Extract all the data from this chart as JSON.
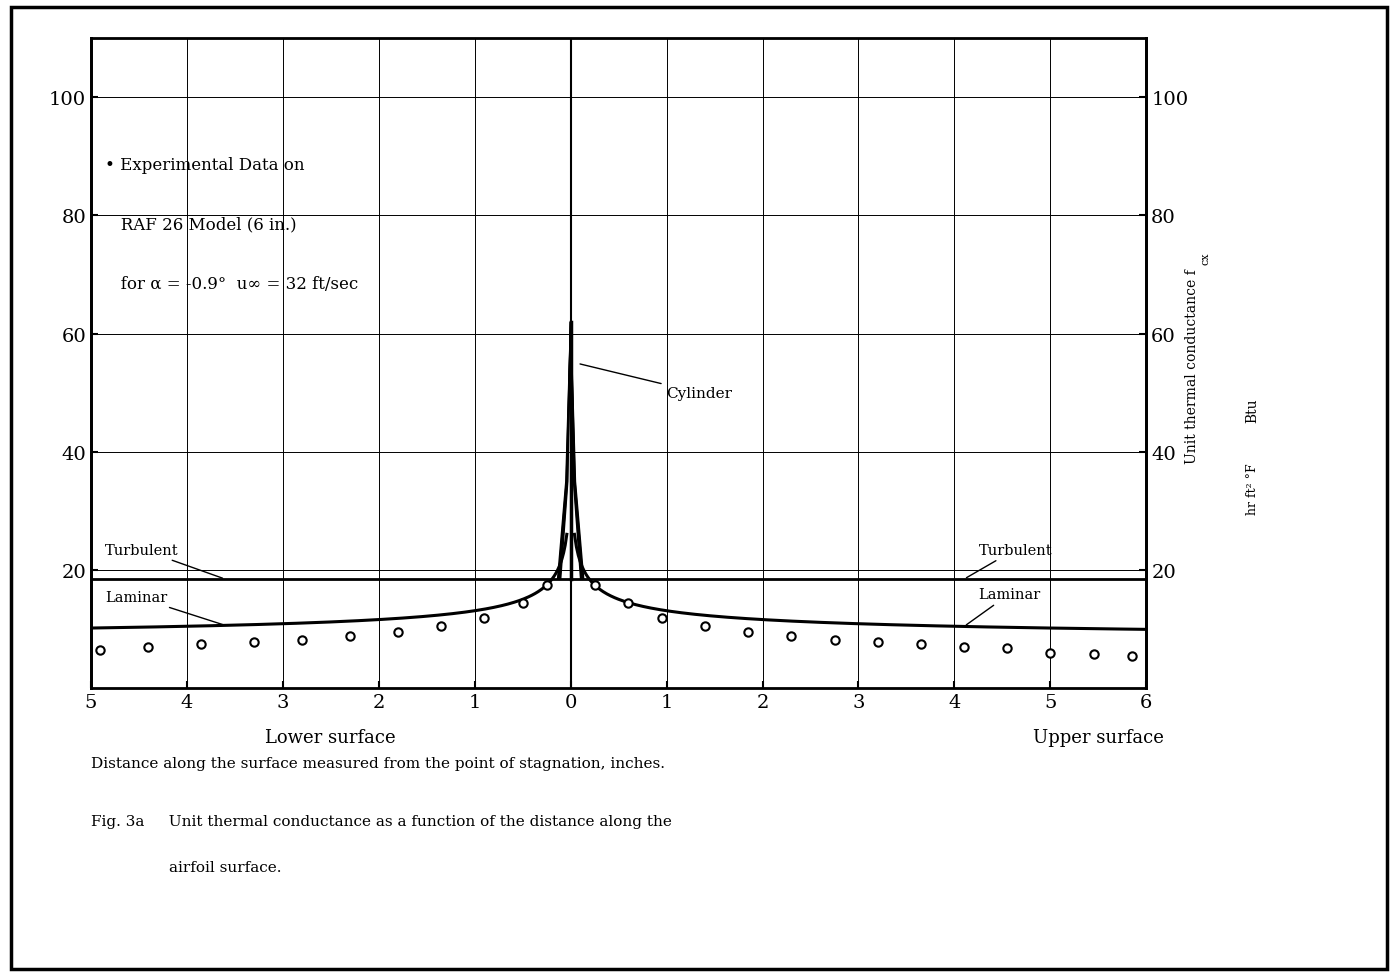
{
  "bg_color": "#ffffff",
  "xlim": [
    -5,
    6
  ],
  "ylim": [
    0,
    110
  ],
  "ytick_vals": [
    20,
    40,
    60,
    80,
    100
  ],
  "xtick_positions": [
    -5,
    -4,
    -3,
    -2,
    -1,
    0,
    1,
    2,
    3,
    4,
    5,
    6
  ],
  "xtick_labels": [
    "5",
    "4",
    "3",
    "2",
    "1",
    "0",
    "1",
    "2",
    "3",
    "4",
    "5",
    "6"
  ],
  "turbulent_y": 18.5,
  "exp_data_x": [
    -4.9,
    -4.4,
    -3.85,
    -3.3,
    -2.8,
    -2.3,
    -1.8,
    -1.35,
    -0.9,
    -0.5,
    -0.25,
    0.25,
    0.6,
    0.95,
    1.4,
    1.85,
    2.3,
    2.75,
    3.2,
    3.65,
    4.1,
    4.55,
    5.0,
    5.45,
    5.85
  ],
  "exp_data_y": [
    6.5,
    7.0,
    7.5,
    7.8,
    8.2,
    8.8,
    9.5,
    10.5,
    12.0,
    14.5,
    17.5,
    17.5,
    14.5,
    12.0,
    10.5,
    9.5,
    8.8,
    8.2,
    7.8,
    7.5,
    7.0,
    6.8,
    6.0,
    5.8,
    5.5
  ],
  "legend_line1": "• Experimental Data on",
  "legend_line2": "   RAF 26 Model (6 in.)",
  "legend_line3": "   for α = -0.9°  u∞ = 32 ft/sec",
  "label_cylinder": "Cylinder",
  "label_turb_left": "Turbulent",
  "label_lam_left": "Laminar",
  "label_turb_right": "Turbulent",
  "label_lam_right": "Laminar",
  "lower_surface": "Lower surface",
  "upper_surface": "Upper surface",
  "caption1": "Distance along the surface measured from the point of stagnation, inches.",
  "caption2": "Fig. 3a     Unit thermal conductance as a function of the distance along the",
  "caption3": "                airfoil surface."
}
